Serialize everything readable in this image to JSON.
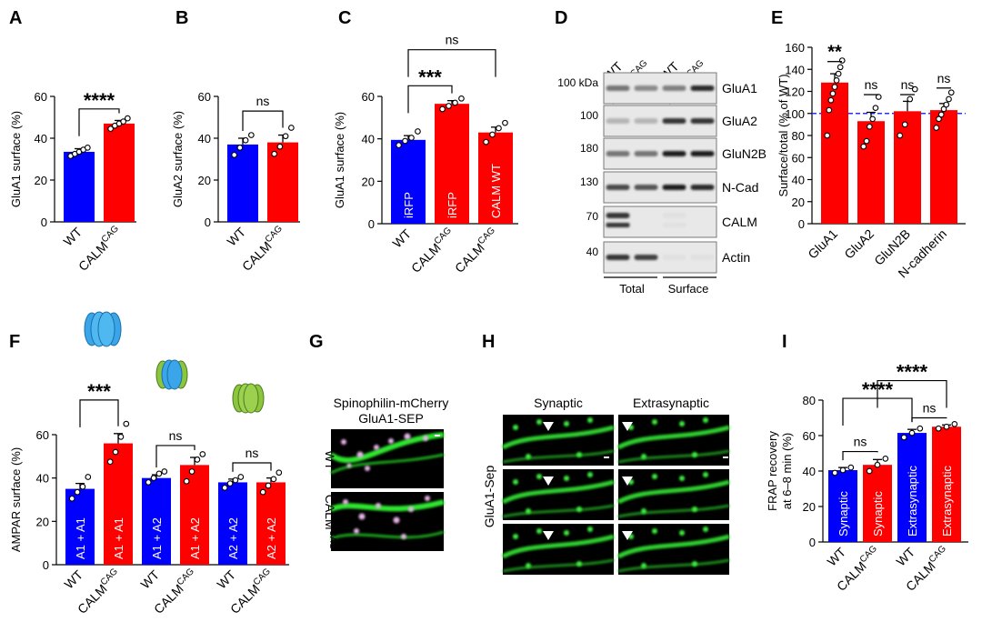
{
  "panels": {
    "A": {
      "letter": "A",
      "chart_data": {
        "type": "bar",
        "ylabel": "GluA1 surface (%)",
        "ylim": [
          0,
          60
        ],
        "yticks": [
          0,
          20,
          40,
          60
        ],
        "categories": [
          {
            "main": "WT",
            "sup": ""
          },
          {
            "main": "CALM",
            "sup": "CAG"
          }
        ],
        "values": [
          33.5,
          47
        ],
        "errors": [
          1.5,
          1.5
        ],
        "colors": [
          "#0000FF",
          "#FF0000"
        ],
        "points": [
          [
            31.5,
            32.5,
            33.5,
            34.5,
            35.5
          ],
          [
            44.5,
            46,
            47,
            48,
            49.5
          ]
        ],
        "brackets": [
          {
            "from": 0,
            "to": 1,
            "label": "****",
            "y": 54
          }
        ]
      }
    },
    "B": {
      "letter": "B",
      "chart_data": {
        "type": "bar",
        "ylabel": "GluA2 surface (%)",
        "ylim": [
          0,
          60
        ],
        "yticks": [
          0,
          20,
          40,
          60
        ],
        "categories": [
          {
            "main": "WT",
            "sup": ""
          },
          {
            "main": "CALM",
            "sup": "CAG"
          }
        ],
        "values": [
          37,
          38
        ],
        "errors": [
          3,
          3.5
        ],
        "colors": [
          "#0000FF",
          "#FF0000"
        ],
        "points": [
          [
            32,
            35.5,
            39,
            41.5
          ],
          [
            32.5,
            36,
            41,
            45
          ]
        ],
        "brackets": [
          {
            "from": 0,
            "to": 1,
            "label": "ns",
            "y": 53
          }
        ]
      }
    },
    "C": {
      "letter": "C",
      "chart_data": {
        "type": "bar",
        "ylabel": "GluA1 surface (%)",
        "ylim": [
          0,
          60
        ],
        "yticks": [
          0,
          20,
          40,
          60
        ],
        "categories": [
          {
            "main": "WT",
            "sup": ""
          },
          {
            "main": "CALM",
            "sup": "CAG"
          },
          {
            "main": "CALM",
            "sup": "CAG"
          }
        ],
        "bar_labels": [
          "iRFP",
          "iRFP",
          "CALM WT"
        ],
        "values": [
          39.5,
          56.5,
          43
        ],
        "errors": [
          2,
          1.5,
          2.5
        ],
        "colors": [
          "#0000FF",
          "#FF0000",
          "#FF0000"
        ],
        "points": [
          [
            37,
            39,
            40.5,
            43.5
          ],
          [
            54,
            55.5,
            57,
            59
          ],
          [
            38.5,
            42,
            45,
            47.5
          ]
        ],
        "brackets": [
          {
            "from": 0,
            "to": 1,
            "label": "***",
            "y": 65
          },
          {
            "from": 0,
            "to": 2,
            "label": "ns",
            "y": 82
          }
        ]
      }
    },
    "D": {
      "letter": "D",
      "lanes": [
        {
          "main": "WT",
          "sup": ""
        },
        {
          "main": "CALM",
          "sup": "CAG"
        },
        {
          "main": "WT",
          "sup": ""
        },
        {
          "main": "CALM",
          "sup": "CAG"
        }
      ],
      "rows": [
        {
          "label": "GluA1",
          "mw": "100 kDa",
          "bands": [
            0.55,
            0.45,
            0.5,
            0.9
          ]
        },
        {
          "label": "GluA2",
          "mw": "100",
          "bands": [
            0.25,
            0.25,
            0.85,
            0.85
          ]
        },
        {
          "label": "GluN2B",
          "mw": "180",
          "bands": [
            0.55,
            0.55,
            0.95,
            0.95
          ]
        },
        {
          "label": "N-Cad",
          "mw": "130",
          "bands": [
            0.75,
            0.7,
            0.95,
            0.9
          ]
        },
        {
          "label": "CALM",
          "mw": "70",
          "bands": [
            0.85,
            0.0,
            0.05,
            0.0
          ]
        },
        {
          "label": "Actin",
          "mw": "40",
          "bands": [
            0.85,
            0.8,
            0.05,
            0.05
          ]
        }
      ],
      "groups": [
        "Total",
        "Surface"
      ]
    },
    "E": {
      "letter": "E",
      "chart_data": {
        "type": "bar",
        "ylabel": "Surface/total (% of WT)",
        "ylim": [
          0,
          160
        ],
        "yticks": [
          0,
          20,
          40,
          60,
          80,
          100,
          120,
          140,
          160
        ],
        "reference_line": 100,
        "categories": [
          "GluA1",
          "GluA2",
          "GluN2B",
          "N-cadherin"
        ],
        "values": [
          128,
          93,
          102,
          103
        ],
        "errors": [
          8,
          8,
          9,
          6
        ],
        "colors": [
          "#FF0000",
          "#FF0000",
          "#FF0000",
          "#FF0000"
        ],
        "points": [
          [
            80,
            103,
            112,
            118,
            124,
            130,
            136,
            142,
            148
          ],
          [
            70,
            75,
            88,
            95,
            105,
            115
          ],
          [
            80,
            90,
            113,
            122
          ],
          [
            87,
            95,
            99,
            104,
            108,
            113,
            119
          ]
        ],
        "sig_labels": [
          "**",
          "ns",
          "ns",
          "ns"
        ],
        "sig_y": [
          152,
          122,
          122,
          128
        ]
      }
    },
    "F": {
      "letter": "F",
      "chart_data": {
        "type": "bar",
        "ylabel": "AMPAR surface (%)",
        "ylim": [
          0,
          60
        ],
        "yticks": [
          0,
          20,
          40,
          60
        ],
        "categories": [
          {
            "main": "WT",
            "sup": ""
          },
          {
            "main": "CALM",
            "sup": "CAG"
          },
          {
            "main": "WT",
            "sup": ""
          },
          {
            "main": "CALM",
            "sup": "CAG"
          },
          {
            "main": "WT",
            "sup": ""
          },
          {
            "main": "CALM",
            "sup": "CAG"
          }
        ],
        "bar_labels": [
          "A1 + A1",
          "A1 + A1",
          "A1 + A2",
          "A1 + A2",
          "A2 + A2",
          "A2 + A2"
        ],
        "values": [
          35,
          56,
          40,
          46,
          38,
          38
        ],
        "errors": [
          2.5,
          4.5,
          1.5,
          3.5,
          1.5,
          2
        ],
        "colors": [
          "#0000FF",
          "#FF0000",
          "#0000FF",
          "#FF0000",
          "#0000FF",
          "#FF0000"
        ],
        "points": [
          [
            30.5,
            33.5,
            36,
            40.5
          ],
          [
            47.5,
            52,
            59,
            65
          ],
          [
            38,
            40,
            42,
            43
          ],
          [
            38.5,
            43,
            48.5,
            51
          ],
          [
            35.5,
            37.5,
            39,
            40.5
          ],
          [
            33.5,
            36.5,
            39.5,
            42.5
          ]
        ],
        "brackets": [
          {
            "from": 0,
            "to": 1,
            "label": "***",
            "y": 76
          },
          {
            "from": 2,
            "to": 3,
            "label": "ns",
            "y": 55
          },
          {
            "from": 4,
            "to": 5,
            "label": "ns",
            "y": 47
          }
        ],
        "channel_colors": [
          "#3AA5E8",
          "mixed",
          "#8CC63F"
        ]
      }
    },
    "G": {
      "letter": "G",
      "title_line1": "Spinophilin-mCherry",
      "title_line2": "GluA1-SEP",
      "row_labels": [
        {
          "main": "WT",
          "sup": ""
        },
        {
          "main": "CALM",
          "sup": "CAG"
        }
      ]
    },
    "H": {
      "letter": "H",
      "col_labels": [
        "Synaptic",
        "Extrasynaptic"
      ],
      "row_label": "GluA1-Sep"
    },
    "I": {
      "letter": "I",
      "chart_data": {
        "type": "bar",
        "ylabel_line1": "FRAP recovery",
        "ylabel_line2": "at 6–8 min (%)",
        "ylim": [
          0,
          80
        ],
        "yticks": [
          0,
          20,
          40,
          60,
          80
        ],
        "categories": [
          {
            "main": "WT",
            "sup": ""
          },
          {
            "main": "CALM",
            "sup": "CAG"
          },
          {
            "main": "WT",
            "sup": ""
          },
          {
            "main": "CALM",
            "sup": "CAG"
          }
        ],
        "bar_labels": [
          "Synaptic",
          "Synaptic",
          "Extrasynaptic",
          "Extrasynaptic"
        ],
        "values": [
          40.5,
          43.5,
          61.5,
          65
        ],
        "errors": [
          1.5,
          3,
          2,
          1
        ],
        "colors": [
          "#0000FF",
          "#FF0000",
          "#0000FF",
          "#FF0000"
        ],
        "points": [
          [
            39,
            40.5,
            42
          ],
          [
            40,
            43.5,
            47
          ],
          [
            59,
            61.5,
            64
          ],
          [
            64,
            65,
            66.5
          ]
        ],
        "brackets": [
          {
            "from": 0,
            "to": 1,
            "label": "ns",
            "y": 51
          },
          {
            "from": 2,
            "to": 3,
            "label": "ns",
            "y": 70
          },
          {
            "from": 0,
            "to": 2,
            "label": "****",
            "y": 81
          },
          {
            "from": 1,
            "to": 3,
            "label": "****",
            "y": 91
          }
        ]
      }
    }
  }
}
